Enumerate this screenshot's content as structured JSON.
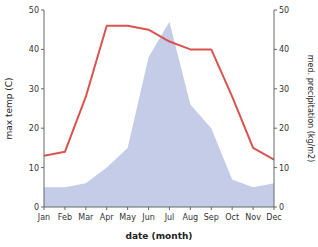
{
  "chart_data": {
    "type": "line",
    "xlabel": "date (month)",
    "ylabel": "max temp (C)",
    "y2label": "med. precipitation (kg/m2)",
    "categories": [
      "Jan",
      "Feb",
      "Mar",
      "Apr",
      "May",
      "Jun",
      "Jul",
      "Aug",
      "Sep",
      "Oct",
      "Nov",
      "Dec"
    ],
    "series": [
      {
        "type": "line",
        "color": "#d9534f",
        "values": [
          13,
          14,
          28,
          46,
          46,
          45,
          42,
          40,
          40,
          28,
          15,
          12
        ]
      },
      {
        "type": "area",
        "color": "#c5cce8",
        "axis": "y2",
        "values": [
          5,
          5,
          6,
          10,
          15,
          38,
          47,
          26,
          20,
          7,
          5,
          6
        ]
      }
    ],
    "ylim": [
      0,
      50
    ],
    "yticks": [
      0,
      10,
      20,
      30,
      40,
      50
    ],
    "y2lim": [
      0,
      50
    ],
    "y2ticks": [
      0,
      10,
      20,
      30,
      40,
      50
    ],
    "grid": false
  }
}
